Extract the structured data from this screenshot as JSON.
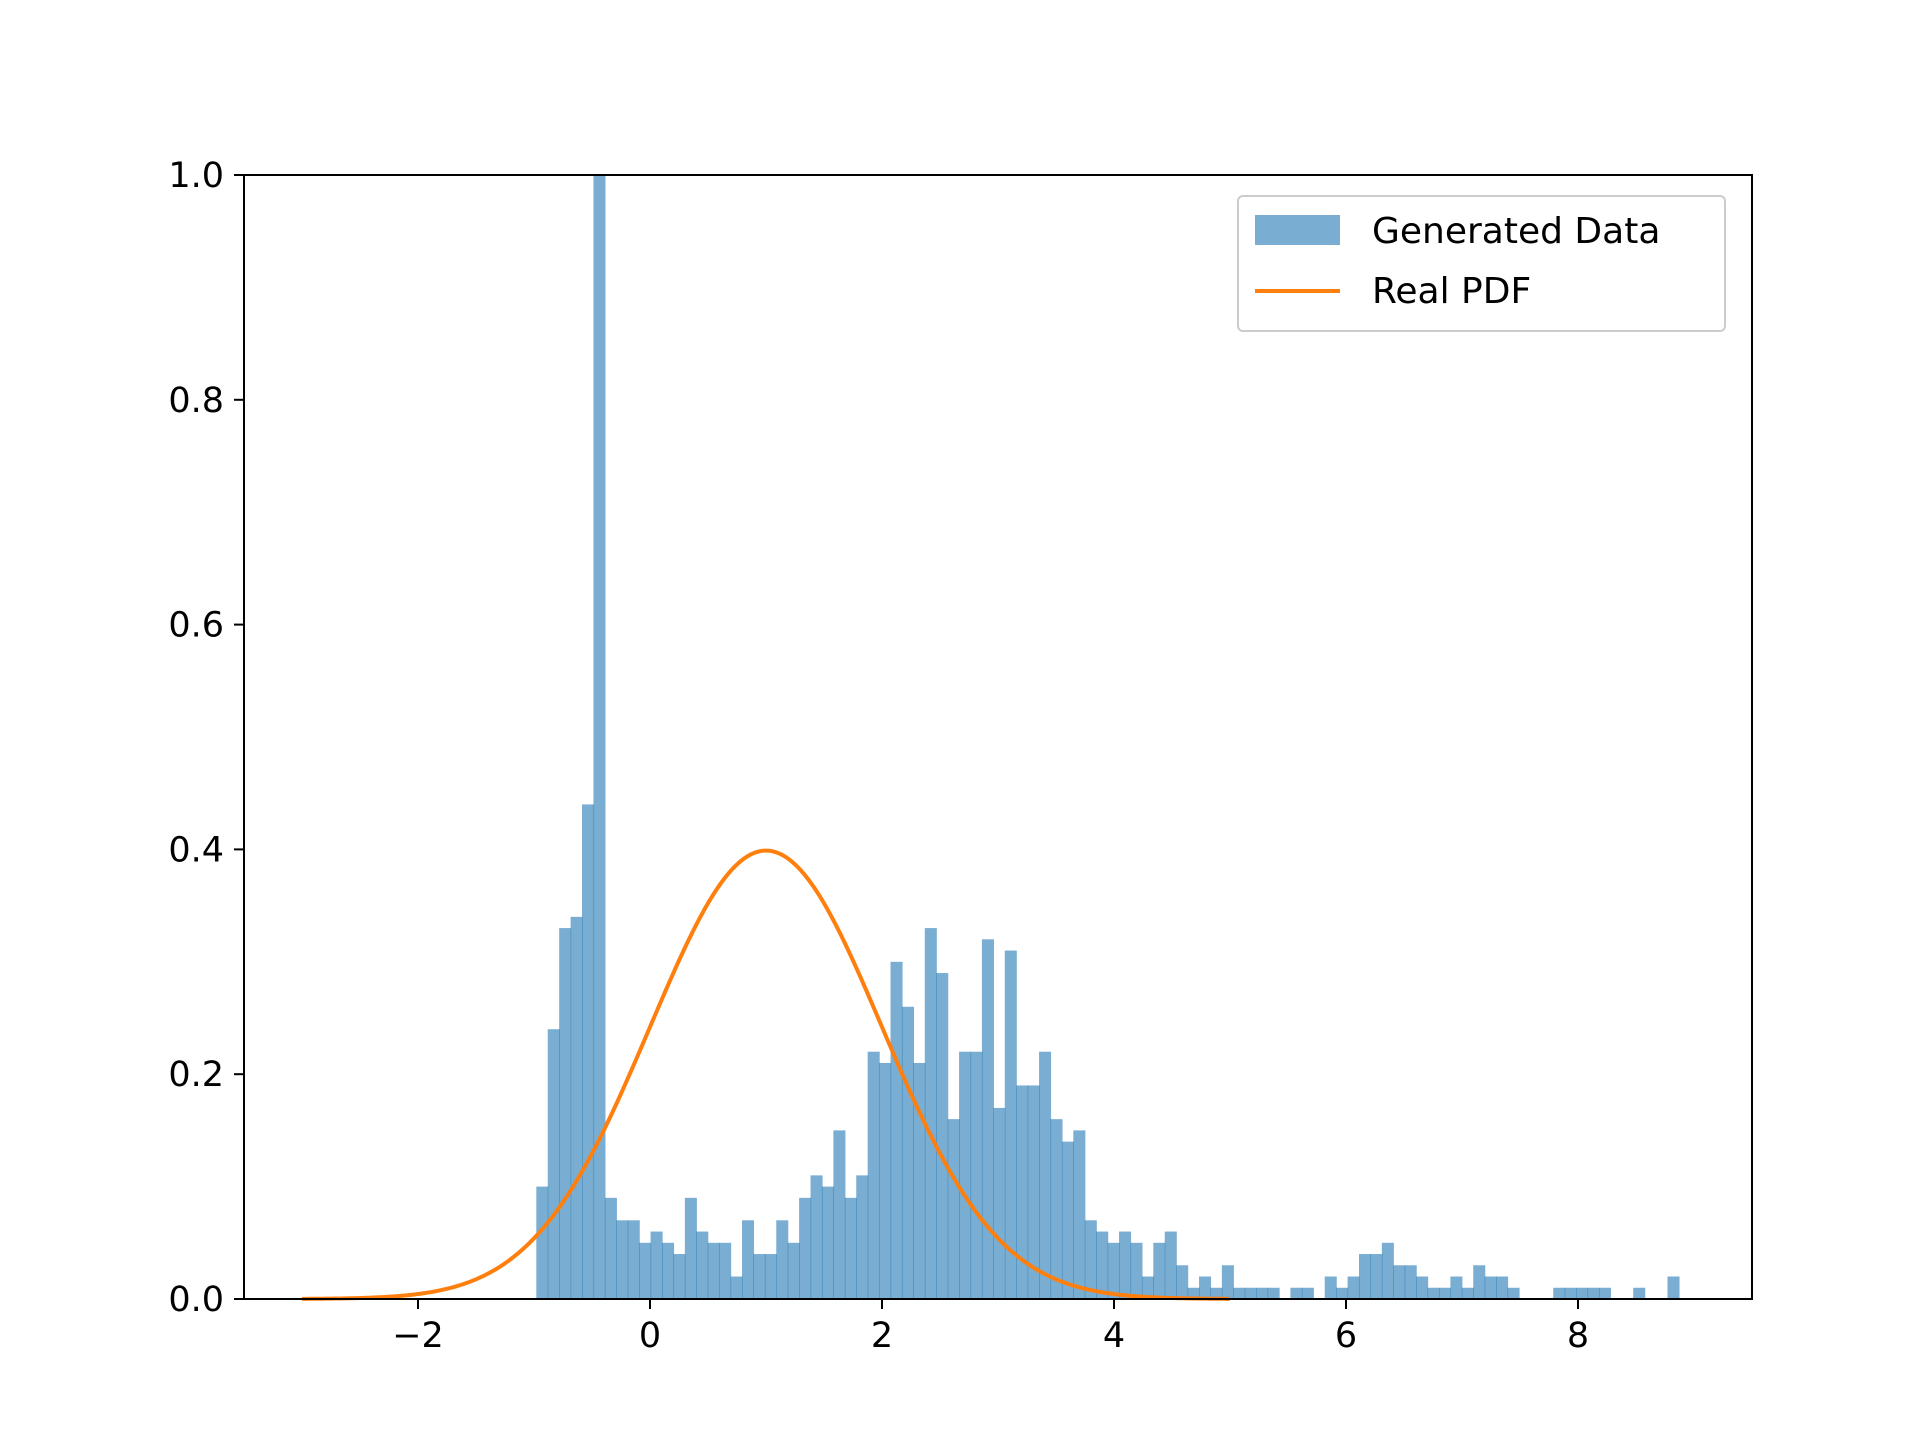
{
  "chart_data": {
    "type": "bar",
    "title": "",
    "xlabel": "",
    "ylabel": "",
    "xlim": [
      -3.5,
      9.5
    ],
    "ylim": [
      0,
      1.0
    ],
    "xticks": [
      -2,
      0,
      2,
      4,
      6,
      8
    ],
    "xtick_labels": [
      "−2",
      "0",
      "2",
      "4",
      "6",
      "8"
    ],
    "yticks": [
      0.0,
      0.2,
      0.4,
      0.6,
      0.8,
      1.0
    ],
    "ytick_labels": [
      "0.0",
      "0.2",
      "0.4",
      "0.6",
      "0.8",
      "1.0"
    ],
    "grid": false,
    "legend_position": "top-right",
    "series": [
      {
        "name": "Generated Data",
        "kind": "histogram",
        "color": "#1f77b4",
        "alpha": 0.6,
        "bin_start": -0.98,
        "bin_width": 0.0985,
        "values": [
          0.1,
          0.24,
          0.33,
          0.34,
          0.44,
          1.0,
          0.09,
          0.07,
          0.07,
          0.05,
          0.06,
          0.05,
          0.04,
          0.09,
          0.06,
          0.05,
          0.05,
          0.02,
          0.07,
          0.04,
          0.04,
          0.07,
          0.05,
          0.09,
          0.11,
          0.1,
          0.15,
          0.09,
          0.11,
          0.22,
          0.21,
          0.3,
          0.26,
          0.21,
          0.33,
          0.29,
          0.16,
          0.22,
          0.22,
          0.32,
          0.17,
          0.31,
          0.19,
          0.19,
          0.22,
          0.16,
          0.14,
          0.15,
          0.07,
          0.06,
          0.05,
          0.06,
          0.05,
          0.02,
          0.05,
          0.06,
          0.03,
          0.01,
          0.02,
          0.01,
          0.03,
          0.01,
          0.01,
          0.01,
          0.01,
          0.0,
          0.01,
          0.01,
          0.0,
          0.02,
          0.01,
          0.02,
          0.04,
          0.04,
          0.05,
          0.03,
          0.03,
          0.02,
          0.01,
          0.01,
          0.02,
          0.01,
          0.03,
          0.02,
          0.02,
          0.01,
          0.0,
          0.0,
          0.0,
          0.01,
          0.01,
          0.01,
          0.01,
          0.01,
          0.0,
          0.0,
          0.01,
          0.0,
          0.0,
          0.02
        ]
      },
      {
        "name": "Real PDF",
        "kind": "line",
        "color": "#ff7f0e",
        "mean": 1.0,
        "std": 1.0,
        "x_range": [
          -3.0,
          5.0
        ]
      }
    ]
  }
}
